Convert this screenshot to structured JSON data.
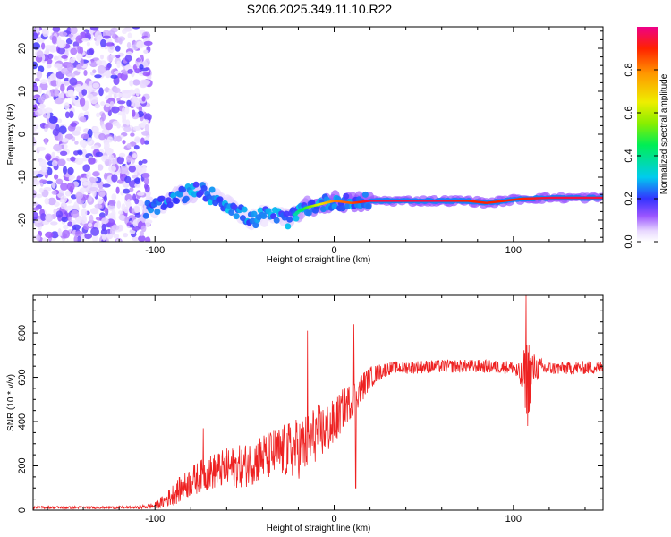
{
  "title": "S206.2025.349.11.10.R22",
  "chart_data": [
    {
      "type": "heatmap",
      "name": "spectrogram",
      "xlabel": "Height of straight line (km)",
      "ylabel": "Frequency (Hz)",
      "xlim": [
        -168,
        150
      ],
      "ylim": [
        -25,
        25
      ],
      "xticks": [
        -100,
        0,
        100
      ],
      "xtick_labels": [
        "-100",
        "0",
        "100"
      ],
      "yticks": [
        -20,
        -10,
        0,
        10,
        20
      ],
      "ytick_labels": [
        "-20",
        "-10",
        "0",
        "10",
        "20"
      ],
      "colorbar": {
        "label": "Normalized spectral amplitude",
        "range": [
          0,
          1
        ],
        "ticks": [
          0.0,
          0.2,
          0.4,
          0.6,
          0.8
        ],
        "tick_labels": [
          "0.0",
          "0.2",
          "0.4",
          "0.6",
          "0.8"
        ]
      },
      "noise_region_x": [
        -168,
        -103
      ],
      "signal_trace": {
        "x": [
          -105,
          -95,
          -85,
          -75,
          -65,
          -55,
          -50,
          -45,
          -40,
          -35,
          -30,
          -25,
          -20,
          -15,
          -10,
          -5,
          0,
          10,
          20,
          40,
          60,
          75,
          85,
          95,
          105,
          120,
          135,
          150
        ],
        "frequency": [
          -17.5,
          -16.5,
          -14,
          -13,
          -15,
          -17.5,
          -19,
          -20,
          -19,
          -18.5,
          -19.5,
          -20,
          -18,
          -17,
          -16.5,
          -16,
          -15.5,
          -16,
          -15.5,
          -15.5,
          -15.5,
          -15.5,
          -16,
          -15.5,
          -15,
          -14.8,
          -14.8,
          -14.8
        ],
        "amplitude": [
          0.2,
          0.25,
          0.3,
          0.3,
          0.25,
          0.25,
          0.2,
          0.2,
          0.2,
          0.2,
          0.25,
          0.3,
          0.4,
          0.5,
          0.6,
          0.7,
          0.8,
          0.85,
          0.95,
          0.95,
          0.95,
          0.9,
          0.9,
          0.9,
          0.9,
          0.95,
          0.95,
          0.95
        ]
      }
    },
    {
      "type": "line",
      "name": "snr",
      "xlabel": "Height of straight line (km)",
      "ylabel": "SNR (10 * v/v)",
      "xlim": [
        -168,
        150
      ],
      "ylim": [
        0,
        970
      ],
      "xticks": [
        -100,
        0,
        100
      ],
      "xtick_labels": [
        "-100",
        "0",
        "100"
      ],
      "yticks": [
        0,
        200,
        400,
        600,
        800
      ],
      "ytick_labels": [
        "0",
        "200",
        "400",
        "600",
        "800"
      ],
      "color": "#ee2222",
      "envelope": {
        "x": [
          -168,
          -110,
          -100,
          -95,
          -90,
          -80,
          -70,
          -60,
          -50,
          -40,
          -30,
          -20,
          -15,
          -10,
          -5,
          0,
          5,
          10,
          15,
          20,
          25,
          30,
          40,
          60,
          80,
          100,
          104,
          108,
          112,
          120,
          150
        ],
        "mean": [
          12,
          12,
          20,
          40,
          70,
          130,
          170,
          190,
          200,
          240,
          260,
          280,
          300,
          350,
          360,
          390,
          460,
          500,
          550,
          600,
          620,
          640,
          645,
          650,
          650,
          645,
          600,
          600,
          640,
          640,
          645
        ],
        "amp": [
          6,
          6,
          15,
          30,
          50,
          70,
          80,
          90,
          100,
          110,
          120,
          140,
          140,
          130,
          120,
          110,
          90,
          80,
          70,
          50,
          40,
          30,
          30,
          30,
          30,
          30,
          60,
          200,
          60,
          30,
          30
        ]
      },
      "spikes": [
        {
          "x": -73,
          "y": 370
        },
        {
          "x": -15,
          "y": 810
        },
        {
          "x": 11,
          "y": 840
        },
        {
          "x": 12,
          "y": 100
        },
        {
          "x": 107,
          "y": 970
        },
        {
          "x": 108,
          "y": 380
        }
      ]
    }
  ]
}
